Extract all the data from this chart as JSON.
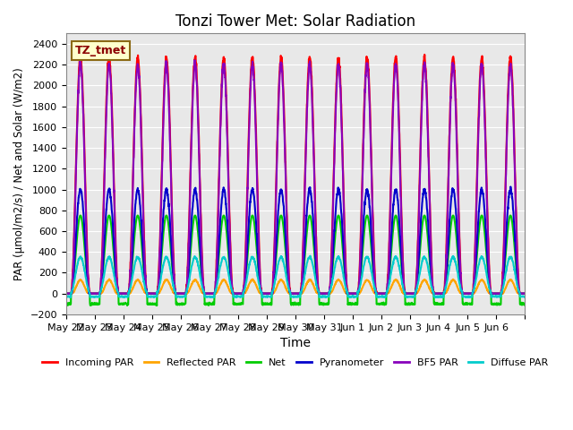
{
  "title": "Tonzi Tower Met: Solar Radiation",
  "ylabel": "PAR (μmol/m2/s) / Net and Solar (W/m2)",
  "xlabel": "Time",
  "ylim": [
    -200,
    2500
  ],
  "yticks": [
    -200,
    0,
    200,
    400,
    600,
    800,
    1000,
    1200,
    1400,
    1600,
    1800,
    2000,
    2200,
    2400
  ],
  "bg_color": "#e8e8e8",
  "fig_color": "#ffffff",
  "label_box": "TZ_tmet",
  "series": {
    "Incoming PAR": {
      "color": "#ff0000",
      "peak": 2270,
      "lw": 1.5
    },
    "Reflected PAR": {
      "color": "#ffa500",
      "peak": 130,
      "lw": 1.5
    },
    "Net": {
      "color": "#00cc00",
      "peak": 750,
      "lw": 1.5
    },
    "Pyranometer": {
      "color": "#0000cc",
      "peak": 1000,
      "lw": 1.5
    },
    "BF5 PAR": {
      "color": "#8800bb",
      "peak": 2200,
      "lw": 1.5
    },
    "Diffuse PAR": {
      "color": "#00cccc",
      "peak": 350,
      "lw": 1.5
    }
  },
  "n_days": 16,
  "points_per_day": 144,
  "start_day_label": "May 22",
  "xtick_labels": [
    "May 22",
    "May 23",
    "May 24",
    "May 25",
    "May 26",
    "May 27",
    "May 28",
    "May 29",
    "May 30",
    "May 31",
    "Jun 1",
    "Jun 2",
    "Jun 3",
    "Jun 4",
    "Jun 5",
    "Jun 6"
  ],
  "net_negative_min": -150
}
